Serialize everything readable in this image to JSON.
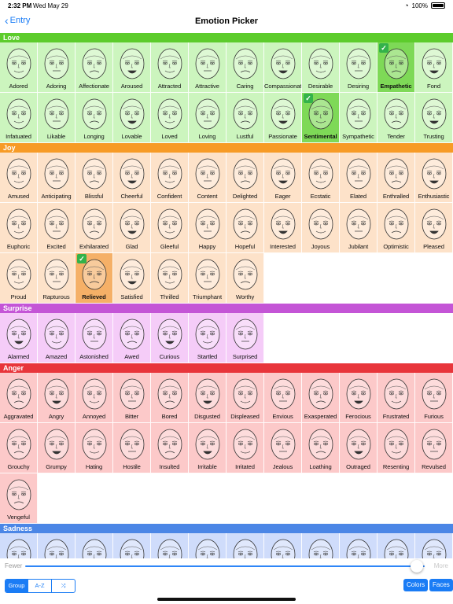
{
  "status": {
    "time": "2:32 PM",
    "date": "Wed May 29",
    "battery": "100%"
  },
  "nav": {
    "back_label": "Entry",
    "title": "Emotion Picker"
  },
  "sections": [
    {
      "name": "Love",
      "color": "#5dcc2c",
      "bg": "#ccf5be",
      "sel_bg": "#7ed957",
      "items": [
        "Adored",
        "Adoring",
        "Affectionate",
        "Aroused",
        "Attracted",
        "Attractive",
        "Caring",
        "Compassionate",
        "Desirable",
        "Desiring",
        "Empathetic",
        "Fond",
        "Infatuated",
        "Likable",
        "Longing",
        "Lovable",
        "Loved",
        "Loving",
        "Lustful",
        "Passionate",
        "Sentimental",
        "Sympathetic",
        "Tender",
        "Trusting"
      ],
      "selected": [
        "Empathetic",
        "Sentimental"
      ]
    },
    {
      "name": "Joy",
      "color": "#f79b26",
      "bg": "#fde2c9",
      "sel_bg": "#f5b067",
      "items": [
        "Amused",
        "Anticipating",
        "Blissful",
        "Cheerful",
        "Confident",
        "Content",
        "Delighted",
        "Eager",
        "Ecstatic",
        "Elated",
        "Enthralled",
        "Enthusiastic",
        "Euphoric",
        "Excited",
        "Exhilarated",
        "Glad",
        "Gleeful",
        "Happy",
        "Hopeful",
        "Interested",
        "Joyous",
        "Jubilant",
        "Optimistic",
        "Pleased",
        "Proud",
        "Rapturous",
        "Relieved",
        "Satisfied",
        "Thrilled",
        "Triumphant",
        "Worthy"
      ],
      "selected": [
        "Relieved"
      ]
    },
    {
      "name": "Surprise",
      "color": "#c455d6",
      "bg": "#f5ccf8",
      "sel_bg": "#e39cec",
      "items": [
        "Alarmed",
        "Amazed",
        "Astonished",
        "Awed",
        "Curious",
        "Startled",
        "Surprised"
      ],
      "selected": []
    },
    {
      "name": "Anger",
      "color": "#e8353b",
      "bg": "#fcc9c9",
      "sel_bg": "#f28c8c",
      "items": [
        "Aggravated",
        "Angry",
        "Annoyed",
        "Bitter",
        "Bored",
        "Disgusted",
        "Displeased",
        "Envious",
        "Exasperated",
        "Ferocious",
        "Frustrated",
        "Furious",
        "Grouchy",
        "Grumpy",
        "Hating",
        "Hostile",
        "Insulted",
        "Irritable",
        "Irritated",
        "Jealous",
        "Loathing",
        "Outraged",
        "Resenting",
        "Revulsed",
        "Vengeful"
      ],
      "selected": []
    },
    {
      "name": "Sadness",
      "color": "#4b86e6",
      "bg": "#cfdcfb",
      "sel_bg": "#8fb0f2",
      "items": [
        "",
        "",
        "",
        "",
        "",
        "",
        "",
        "",
        "",
        "",
        "",
        ""
      ],
      "selected": []
    }
  ],
  "slider": {
    "min_label": "Fewer",
    "max_label": "More",
    "value": 0.98
  },
  "toolbar": {
    "group_label": "Group",
    "az_label": "A-Z",
    "shuffle_icon": "shuffle-icon",
    "colors_label": "Colors",
    "faces_label": "Faces"
  }
}
